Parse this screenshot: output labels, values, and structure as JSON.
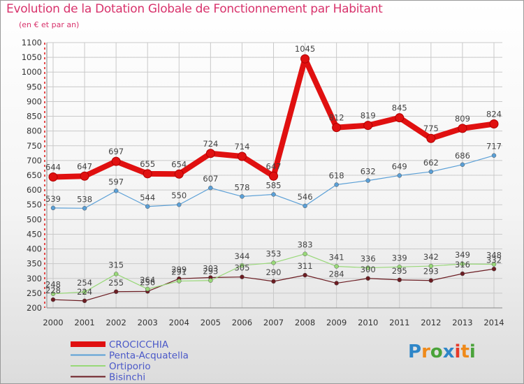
{
  "header": {
    "title": "Evolution de la Dotation Globale de Fonctionnement par Habitant",
    "subtitle": "(en € et par an)"
  },
  "logo": {
    "text": "Proxiti"
  },
  "colors": {
    "title": "#d8336c",
    "crocicchia": "#e01010",
    "penta": "#5a9fd6",
    "ortiporio": "#98d878",
    "bisinchi": "#6b1c22",
    "grid": "#c9c9c9",
    "axis_labels": "#333333"
  },
  "chart_data": {
    "type": "line",
    "title": "Evolution de la Dotation Globale de Fonctionnement par Habitant",
    "subtitle": "(en € et par an)",
    "x": [
      2000,
      2001,
      2002,
      2003,
      2004,
      2005,
      2006,
      2007,
      2008,
      2009,
      2010,
      2011,
      2012,
      2013,
      2014
    ],
    "ylim": [
      200,
      1100
    ],
    "yticks": [
      200,
      250,
      300,
      350,
      400,
      450,
      500,
      550,
      600,
      650,
      700,
      750,
      800,
      850,
      900,
      950,
      1000,
      1050,
      1100
    ],
    "grid": true,
    "legend_position": "bottom-left",
    "series": [
      {
        "name": "CROCICCHIA",
        "color": "#e01010",
        "values": [
          644,
          647,
          697,
          655,
          654,
          724,
          714,
          647,
          1045,
          812,
          819,
          845,
          775,
          809,
          824
        ]
      },
      {
        "name": "Penta-Acquatella",
        "color": "#5a9fd6",
        "values": [
          539,
          538,
          597,
          544,
          550,
          607,
          578,
          585,
          546,
          618,
          632,
          649,
          662,
          686,
          717
        ]
      },
      {
        "name": "Ortiporio",
        "color": "#98d878",
        "values": [
          248,
          254,
          315,
          264,
          291,
          293,
          344,
          353,
          383,
          341,
          336,
          339,
          342,
          349,
          348
        ]
      },
      {
        "name": "Bisinchi",
        "color": "#6b1c22",
        "values": [
          228,
          224,
          255,
          256,
          299,
          303,
          305,
          290,
          311,
          284,
          300,
          295,
          293,
          316,
          332
        ]
      }
    ]
  }
}
